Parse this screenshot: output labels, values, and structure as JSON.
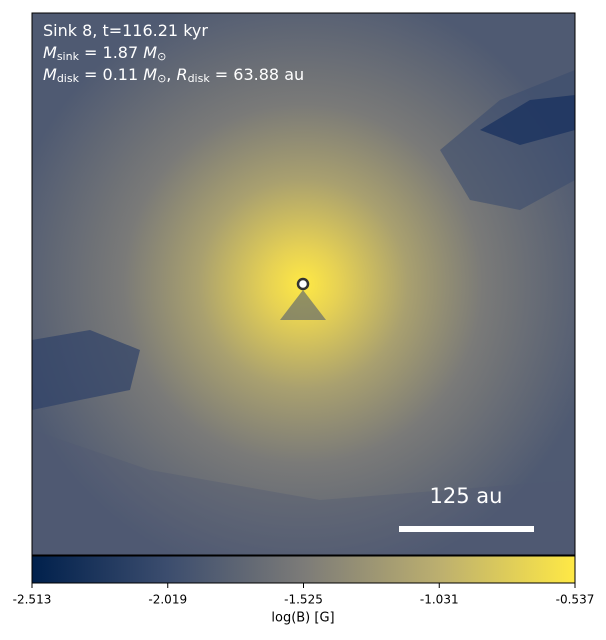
{
  "chart_data": {
    "type": "image",
    "info_lines": [
      [
        {
          "text": "Sink 8, t=116.21 kyr"
        }
      ],
      [
        {
          "text": "M",
          "italic": true
        },
        {
          "text": "sink",
          "sub": true
        },
        {
          "text": " = 1.87 "
        },
        {
          "text": "M",
          "italic": true
        },
        {
          "text": "⊙",
          "sub": true
        }
      ],
      [
        {
          "text": "M",
          "italic": true
        },
        {
          "text": "disk",
          "sub": true
        },
        {
          "text": " = 0.11 "
        },
        {
          "text": "M",
          "italic": true
        },
        {
          "text": "⊙",
          "sub": true
        },
        {
          "text": ", "
        },
        {
          "text": "R",
          "italic": true
        },
        {
          "text": "disk",
          "sub": true
        },
        {
          "text": " = 63.88 au"
        }
      ]
    ],
    "scale_bar_label": "125 au",
    "colorbar": {
      "label": "log(B) [G]",
      "lim": [
        -2.513,
        -0.537
      ],
      "ticks": [
        -2.513,
        -2.019,
        -1.525,
        -1.031,
        -0.537
      ],
      "colors": [
        "#00204c",
        "#3c4d6e",
        "#7c7b78",
        "#bcaf6f",
        "#ffe945"
      ]
    }
  }
}
